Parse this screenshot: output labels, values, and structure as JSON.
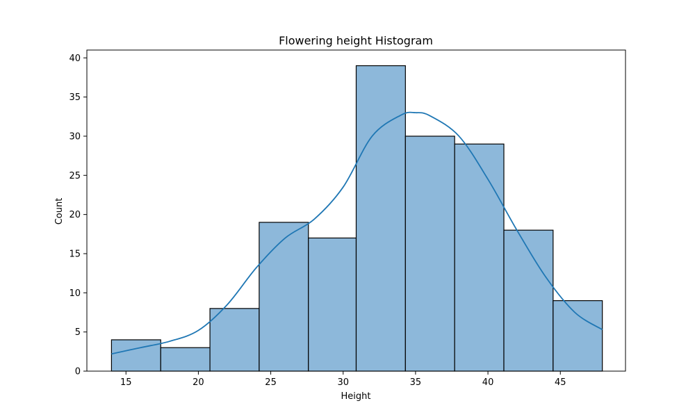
{
  "chart_data": {
    "type": "bar",
    "title": "Flowering height Histogram",
    "xlabel": "Height",
    "ylabel": "Count",
    "xlim": [
      12.3,
      49.5
    ],
    "ylim": [
      0,
      41
    ],
    "xticks": [
      15,
      20,
      25,
      30,
      35,
      40,
      45
    ],
    "yticks": [
      0,
      5,
      10,
      15,
      20,
      25,
      30,
      35,
      40
    ],
    "bin_edges": [
      14.0,
      17.4,
      20.8,
      24.2,
      27.6,
      30.9,
      34.3,
      37.7,
      41.1,
      44.5,
      47.9
    ],
    "counts": [
      4,
      3,
      8,
      19,
      17,
      39,
      30,
      29,
      18,
      9
    ],
    "kde": {
      "x": [
        14.0,
        16.0,
        18.0,
        20.0,
        22.0,
        24.0,
        26.0,
        28.0,
        30.0,
        32.0,
        34.0,
        35.0,
        36.0,
        38.0,
        40.0,
        42.0,
        44.0,
        46.0,
        47.9
      ],
      "y": [
        2.2,
        3.0,
        3.8,
        5.2,
        8.5,
        13.2,
        17.0,
        19.4,
        23.5,
        30.0,
        32.7,
        33.0,
        32.6,
        30.0,
        24.5,
        18.0,
        12.0,
        7.5,
        5.3
      ]
    },
    "grid": false,
    "legend": "none"
  },
  "colors": {
    "bar_fill": "#8db8da",
    "bar_edge": "#000000",
    "kde_line": "#1f77b4",
    "axes": "#000000",
    "background": "#ffffff"
  }
}
